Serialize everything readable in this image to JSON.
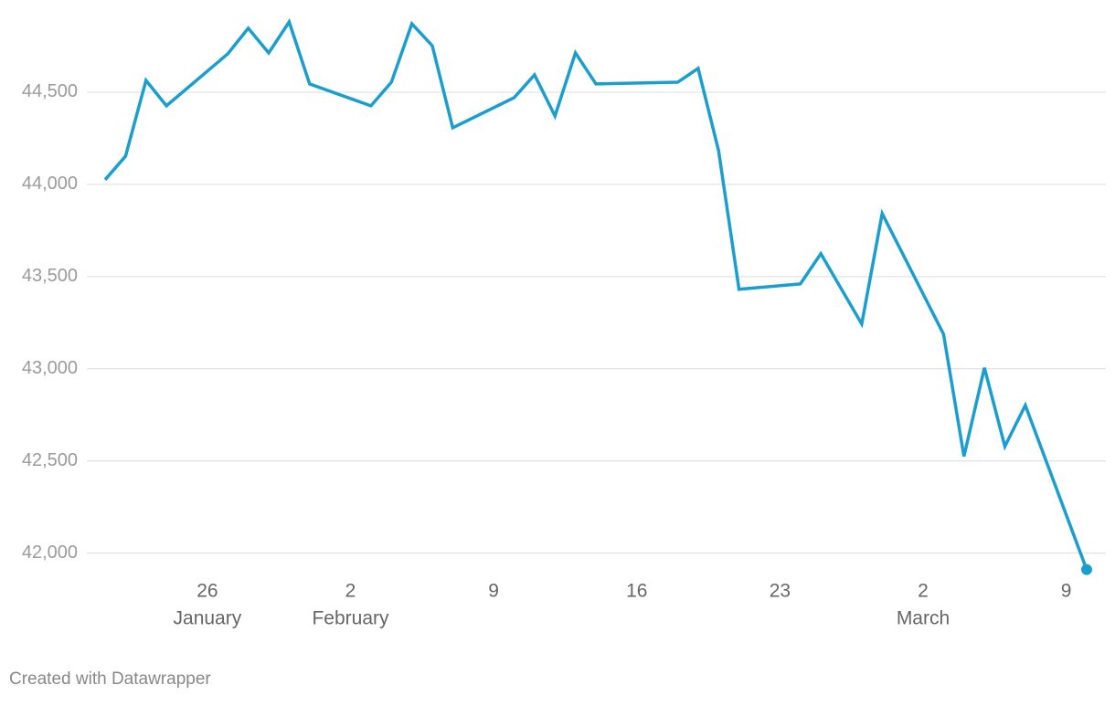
{
  "chart_data": {
    "type": "line",
    "x": [
      "January 21",
      "January 22",
      "January 23",
      "January 24",
      "January 27",
      "January 28",
      "January 29",
      "January 30",
      "January 31",
      "February 3",
      "February 4",
      "February 5",
      "February 6",
      "February 7",
      "February 10",
      "February 11",
      "February 12",
      "February 13",
      "February 14",
      "February 18",
      "February 19",
      "February 20",
      "February 21",
      "February 24",
      "February 25",
      "February 27",
      "February 28",
      "March 3",
      "March 4",
      "March 5",
      "March 6",
      "March 7",
      "March 10"
    ],
    "series": [
      {
        "color": "#1a9ecf",
        "values": [
          44025,
          44153,
          44564,
          44426,
          44708,
          44847,
          44713,
          44881,
          44545,
          44426,
          44554,
          44871,
          44752,
          44307,
          44470,
          44594,
          44371,
          44713,
          44545,
          44554,
          44629,
          44183,
          43431,
          43460,
          43624,
          43243,
          43842,
          43188,
          42525,
          43005,
          42579,
          42802,
          41911
        ]
      }
    ],
    "xlim": [
      "January 21",
      "March 10"
    ],
    "xticks": [
      {
        "value": "January 26",
        "label": "26"
      },
      {
        "value": "February 2",
        "label": "2"
      },
      {
        "value": "February 9",
        "label": "9"
      },
      {
        "value": "February 16",
        "label": "16"
      },
      {
        "value": "February 23",
        "label": "23"
      },
      {
        "value": "March 2",
        "label": "2"
      },
      {
        "value": "March 9",
        "label": "9"
      }
    ],
    "xtick_months": [
      {
        "value": "January 26",
        "label": "January"
      },
      {
        "value": "February 2",
        "label": "February"
      },
      {
        "value": "March 2",
        "label": "March"
      }
    ],
    "ylim": [
      41800,
      45000
    ],
    "yticks": [
      {
        "value": 42000,
        "label": "42,000"
      },
      {
        "value": 42500,
        "label": "42,500"
      },
      {
        "value": 43000,
        "label": "43,000"
      },
      {
        "value": 43500,
        "label": "43,500"
      },
      {
        "value": 44000,
        "label": "44,000"
      },
      {
        "value": 44500,
        "label": "44,500"
      }
    ],
    "grid": true,
    "footer": "Created with Datawrapper"
  }
}
